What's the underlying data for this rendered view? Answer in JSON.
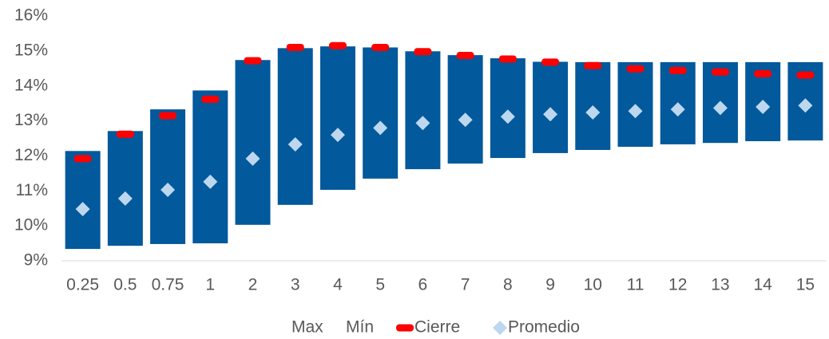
{
  "chart_data": {
    "type": "range-bar",
    "categories": [
      "0.25",
      "0.5",
      "0.75",
      "1",
      "2",
      "3",
      "4",
      "5",
      "6",
      "7",
      "8",
      "9",
      "10",
      "11",
      "12",
      "13",
      "14",
      "15"
    ],
    "series": [
      {
        "name": "Max",
        "color": "#02599c",
        "values": [
          12.14,
          12.71,
          13.33,
          13.87,
          14.74,
          15.08,
          15.13,
          15.1,
          14.99,
          14.88,
          14.79,
          14.69,
          14.68,
          14.68,
          14.68,
          14.68,
          14.68,
          14.68
        ]
      },
      {
        "name": "Mín",
        "values": [
          9.34,
          9.43,
          9.48,
          9.5,
          10.03,
          10.6,
          11.03,
          11.35,
          11.62,
          11.78,
          11.94,
          12.08,
          12.17,
          12.26,
          12.33,
          12.37,
          12.42,
          12.44
        ]
      },
      {
        "name": "Cierre",
        "color": "#ff0000",
        "values": [
          11.92,
          12.62,
          13.15,
          13.62,
          14.72,
          15.1,
          15.15,
          15.1,
          14.98,
          14.87,
          14.77,
          14.68,
          14.58,
          14.49,
          14.44,
          14.4,
          14.35,
          14.31
        ]
      },
      {
        "name": "Promedio",
        "color": "#bdd7ee",
        "values": [
          10.48,
          10.78,
          11.03,
          11.26,
          11.92,
          12.33,
          12.6,
          12.8,
          12.94,
          13.03,
          13.12,
          13.19,
          13.24,
          13.28,
          13.33,
          13.37,
          13.4,
          13.44
        ]
      }
    ],
    "ylim": [
      9,
      16
    ],
    "yticks": [
      {
        "value": 9,
        "label": "9%"
      },
      {
        "value": 10,
        "label": "10%"
      },
      {
        "value": 11,
        "label": "11%"
      },
      {
        "value": 12,
        "label": "12%"
      },
      {
        "value": 13,
        "label": "13%"
      },
      {
        "value": 14,
        "label": "14%"
      },
      {
        "value": 15,
        "label": "15%"
      },
      {
        "value": 16,
        "label": "16%"
      }
    ],
    "grid": false
  }
}
